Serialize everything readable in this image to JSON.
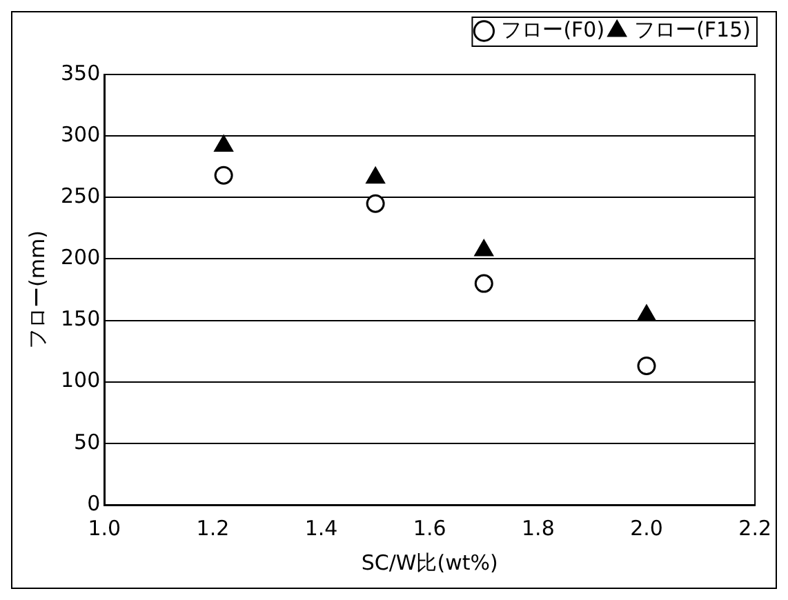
{
  "chart_data": {
    "type": "scatter",
    "xlabel": "SC/W比(wt%)",
    "ylabel": "フロー(mm)",
    "series": [
      {
        "name": "フロー(F0)",
        "color": "#000000",
        "marker": "circle",
        "x": [
          1.22,
          1.5,
          1.7,
          2.0
        ],
        "values": [
          268,
          245,
          180,
          113
        ]
      },
      {
        "name": "フロー(F15)",
        "color": "#000000",
        "marker": "triangle",
        "x": [
          1.22,
          1.5,
          1.7,
          2.0
        ],
        "values": [
          292,
          266,
          207,
          154
        ]
      }
    ],
    "xlim": [
      1.0,
      2.2
    ],
    "xticks": [
      {
        "value": 1.0,
        "label": "1.0"
      },
      {
        "value": 1.2,
        "label": "1.2"
      },
      {
        "value": 1.4,
        "label": "1.4"
      },
      {
        "value": 1.6,
        "label": "1.6"
      },
      {
        "value": 1.8,
        "label": "1.8"
      },
      {
        "value": 2.0,
        "label": "2.0"
      },
      {
        "value": 2.2,
        "label": "2.2"
      }
    ],
    "ylim": [
      0,
      350
    ],
    "yticks": [
      0,
      50,
      100,
      150,
      200,
      250,
      300,
      350
    ],
    "grid": "y",
    "legend": "top right"
  }
}
